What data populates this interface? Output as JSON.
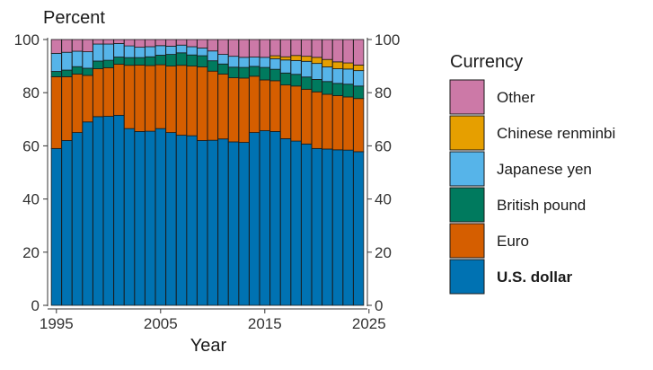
{
  "chart_data": {
    "type": "bar",
    "stacked": true,
    "ylabel": "Percent",
    "xlabel": "Year",
    "ylim": [
      0,
      100
    ],
    "yticks": [
      0,
      20,
      40,
      60,
      80,
      100
    ],
    "xticks": [
      1995,
      2005,
      2015,
      2025
    ],
    "grid": false,
    "legend_position": "right",
    "legend_title": "Currency",
    "x": [
      1995,
      1996,
      1997,
      1998,
      1999,
      2000,
      2001,
      2002,
      2003,
      2004,
      2005,
      2006,
      2007,
      2008,
      2009,
      2010,
      2011,
      2012,
      2013,
      2014,
      2015,
      2016,
      2017,
      2018,
      2019,
      2020,
      2021,
      2022,
      2023,
      2024
    ],
    "series": [
      {
        "name": "U.S. dollar",
        "color": "#0072B2",
        "bold": true,
        "values": [
          59,
          62,
          65,
          69,
          71,
          71.1,
          71.5,
          66.5,
          65.4,
          65.5,
          66.5,
          65,
          64,
          63.8,
          62,
          62.1,
          62.6,
          61.5,
          61.3,
          65,
          65.7,
          65.4,
          62.7,
          61.8,
          60.7,
          59,
          58.8,
          58.5,
          58.4,
          57.8
        ]
      },
      {
        "name": "Euro",
        "color": "#D55E00",
        "bold": false,
        "values": [
          27,
          24,
          22,
          17.5,
          18,
          18.3,
          19.2,
          23.8,
          25,
          24.7,
          24,
          25,
          26.3,
          26.2,
          27.7,
          26,
          24.4,
          24.1,
          24.2,
          21.2,
          19.1,
          19.1,
          20.2,
          20.7,
          20.6,
          21.3,
          20.6,
          20.4,
          20,
          20
        ]
      },
      {
        "name": "British pound",
        "color": "#007A5E",
        "bold": false,
        "values": [
          2,
          2.5,
          2.8,
          2.7,
          2.9,
          2.8,
          2.7,
          2.9,
          2.8,
          3.3,
          3.6,
          4.4,
          4.7,
          4.2,
          4.2,
          3.9,
          3.8,
          4,
          4,
          3.7,
          4.7,
          4.3,
          4.5,
          4.4,
          4.6,
          4.7,
          4.8,
          4.6,
          4.8,
          4.7
        ]
      },
      {
        "name": "Japanese yen",
        "color": "#56B4E9",
        "bold": false,
        "values": [
          6.8,
          6.7,
          5.8,
          6.2,
          6.4,
          6.1,
          5.1,
          4.4,
          3.9,
          3.8,
          3.6,
          3.1,
          2.9,
          3.1,
          2.9,
          3.7,
          3.6,
          4.1,
          3.8,
          3.5,
          3.8,
          4,
          4.9,
          5.2,
          5.9,
          6,
          5.5,
          5.5,
          5.7,
          5.8
        ]
      },
      {
        "name": "Chinese renminbi",
        "color": "#E69F00",
        "bold": false,
        "values": [
          0,
          0,
          0,
          0,
          0,
          0,
          0,
          0,
          0,
          0,
          0,
          0,
          0,
          0,
          0,
          0,
          0,
          0,
          0,
          0,
          0,
          1.1,
          1.2,
          1.9,
          1.9,
          2.3,
          2.8,
          2.6,
          2.3,
          2.1
        ]
      },
      {
        "name": "Other",
        "color": "#CC79A7",
        "bold": false,
        "values": [
          5.2,
          4.8,
          4.4,
          4.6,
          1.7,
          1.7,
          1.5,
          2.4,
          2.9,
          2.7,
          2.3,
          2.5,
          2.1,
          2.7,
          3.2,
          4.3,
          5.6,
          6.3,
          6.7,
          6.6,
          6.7,
          6.1,
          6.5,
          6,
          6.3,
          6.7,
          7.5,
          8.4,
          8.8,
          9.6
        ]
      }
    ]
  }
}
